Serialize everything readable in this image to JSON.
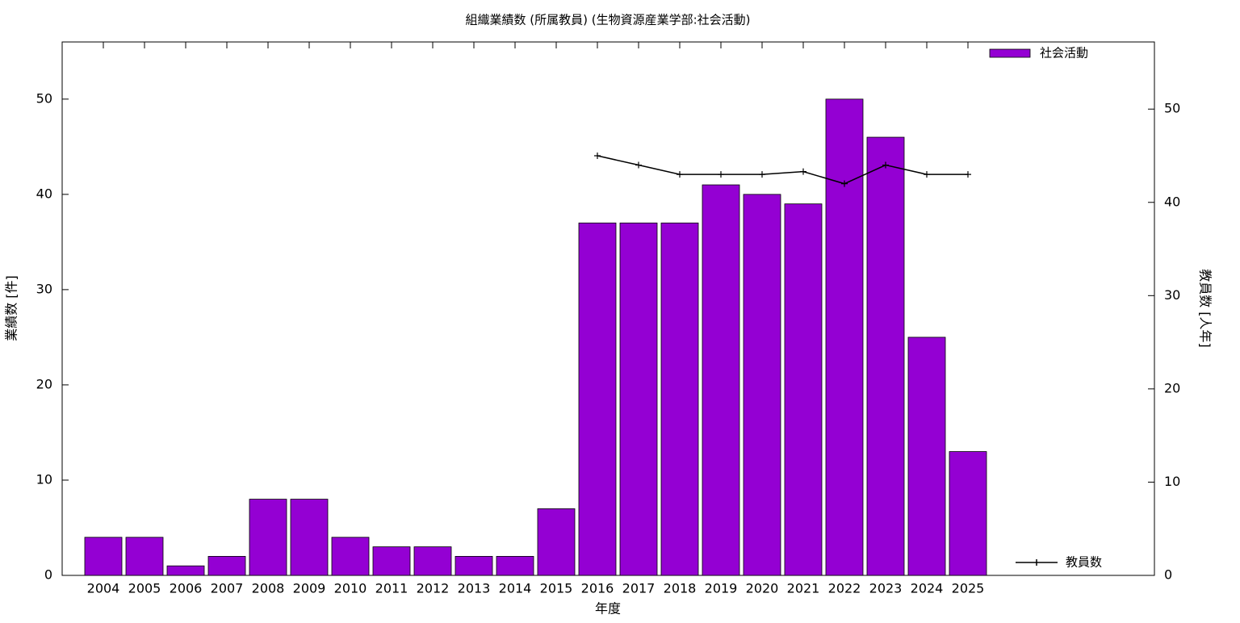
{
  "chart_data": {
    "type": "bar",
    "title": "組織業績数 (所属教員) (生物資源産業学部:社会活動)",
    "x_label": "年度",
    "y_label": "業績数 [件]",
    "y2_label": "教員数 [人年]",
    "categories": [
      "2004",
      "2005",
      "2006",
      "2007",
      "2008",
      "2009",
      "2010",
      "2011",
      "2012",
      "2013",
      "2014",
      "2015",
      "2016",
      "2017",
      "2018",
      "2019",
      "2020",
      "2021",
      "2022",
      "2023",
      "2024",
      "2025"
    ],
    "series": [
      {
        "name": "社会活動",
        "type": "bar",
        "color": "#9400d3",
        "legend": "top-right",
        "values": [
          4,
          4,
          1,
          2,
          8,
          8,
          4,
          3,
          3,
          2,
          2,
          7,
          37,
          37,
          37,
          41,
          40,
          39,
          50,
          46,
          25,
          13
        ]
      },
      {
        "name": "教員数",
        "type": "line",
        "axis": "y2",
        "color": "#000000",
        "legend": "bottom-right",
        "values": [
          null,
          null,
          null,
          null,
          null,
          null,
          null,
          null,
          null,
          null,
          null,
          null,
          45,
          44,
          43,
          43,
          43,
          43.3,
          42,
          44,
          43,
          43
        ]
      }
    ],
    "ylim": [
      0,
      56
    ],
    "yticks": [
      0,
      10,
      20,
      30,
      40,
      50
    ],
    "y2lim": [
      0,
      57.2
    ],
    "y2ticks": [
      0,
      10,
      20,
      30,
      40,
      50
    ]
  }
}
